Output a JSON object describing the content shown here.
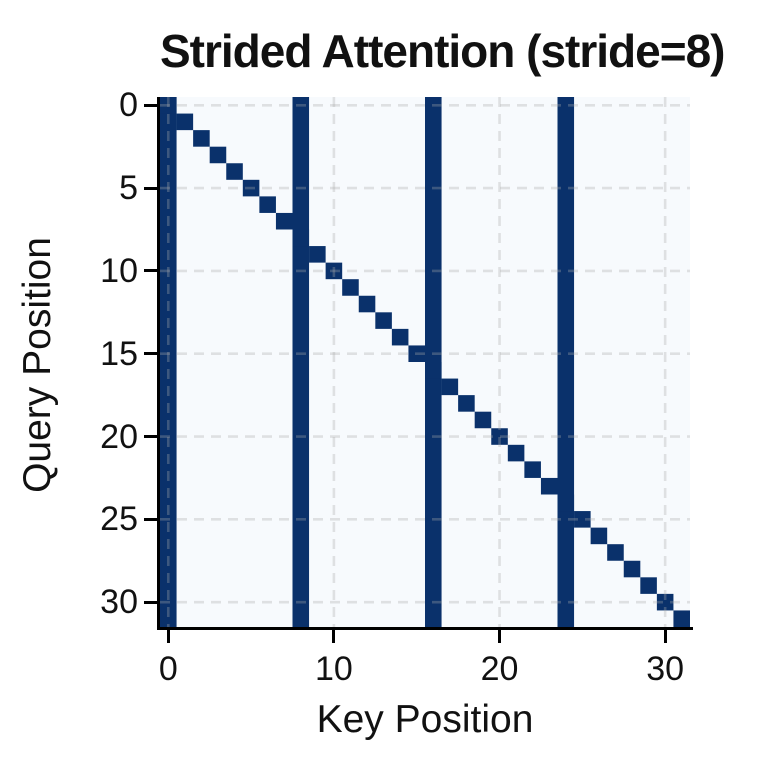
{
  "figure": {
    "title": "Strided Attention (stride=8)",
    "xlabel": "Key Position",
    "ylabel": "Query Position"
  },
  "chart_data": {
    "type": "heatmap",
    "title": "Strided Attention (stride=8)",
    "xlabel": "Key Position",
    "ylabel": "Query Position",
    "grid_size": 32,
    "stride": 8,
    "value_semantics": "binary attention mask: 1 = attended (dark navy cell), 0 = not attended (light background)",
    "mask_rule": "mask[query i][key j] = 1 if (j % 8 == 0) or (j == i)",
    "stripe_columns": [
      0,
      8,
      16,
      24
    ],
    "diagonal": true,
    "x_ticks": [
      0,
      10,
      20,
      30
    ],
    "y_ticks": [
      0,
      5,
      10,
      15,
      20,
      25,
      30
    ],
    "x_range": [
      0,
      31
    ],
    "y_range": [
      0,
      31
    ],
    "grid": "dashed light-gray gridlines at tick positions, drawn above heatmap",
    "legend": "none",
    "spines": "left and bottom only, black",
    "colors": {
      "attended": "#0a316b",
      "background": "#f7fafd",
      "gridline": "#aaaaaa",
      "spine": "#000000",
      "text": "#111111"
    }
  }
}
